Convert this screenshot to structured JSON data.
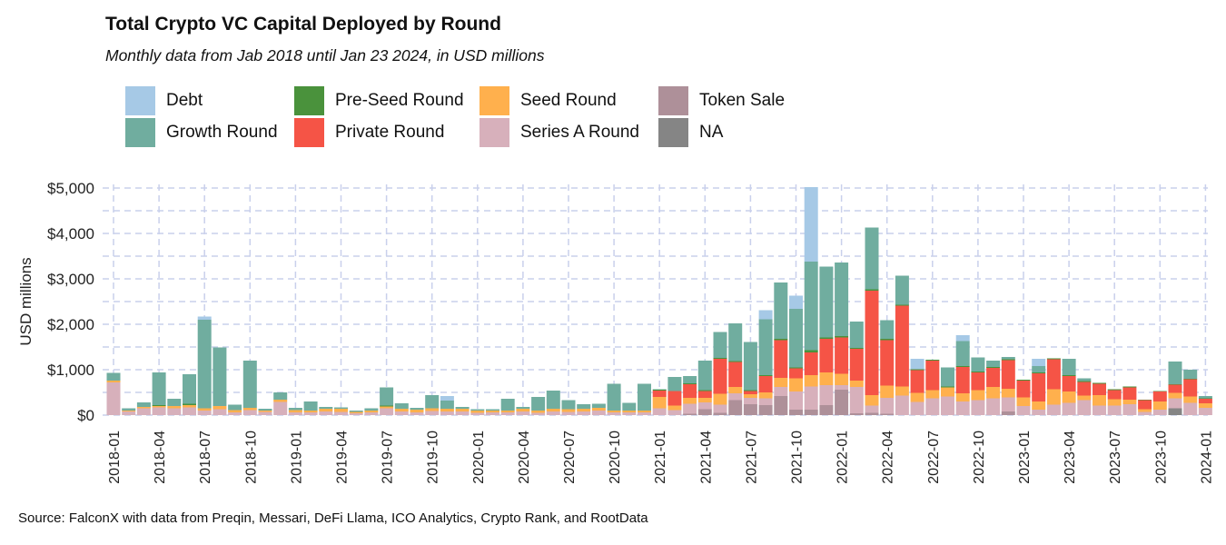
{
  "chart_data": {
    "type": "stacked-bar",
    "title": "Total Crypto VC Capital Deployed by Round",
    "subtitle": "Monthly data from Jab 2018 until Jan 23 2024, in USD millions",
    "ylabel": "USD millions",
    "xlabel": "",
    "ylim": [
      0,
      5000
    ],
    "yticks": [
      0,
      1000,
      2000,
      3000,
      4000,
      5000
    ],
    "ytick_labels": [
      "$0",
      "$1,000",
      "$2,000",
      "$3,000",
      "$4,000",
      "$5,000"
    ],
    "xtick_labels": [
      "2018-01",
      "2018-04",
      "2018-07",
      "2018-10",
      "2019-01",
      "2019-04",
      "2019-07",
      "2019-10",
      "2020-01",
      "2020-04",
      "2020-07",
      "2020-10",
      "2021-01",
      "2021-04",
      "2021-07",
      "2021-10",
      "2022-01",
      "2022-04",
      "2022-07",
      "2022-10",
      "2023-01",
      "2023-04",
      "2023-07",
      "2023-10",
      "2024-01"
    ],
    "categories": [
      "2018-01",
      "2018-02",
      "2018-03",
      "2018-04",
      "2018-05",
      "2018-06",
      "2018-07",
      "2018-08",
      "2018-09",
      "2018-10",
      "2018-11",
      "2018-12",
      "2019-01",
      "2019-02",
      "2019-03",
      "2019-04",
      "2019-05",
      "2019-06",
      "2019-07",
      "2019-08",
      "2019-09",
      "2019-10",
      "2019-11",
      "2019-12",
      "2020-01",
      "2020-02",
      "2020-03",
      "2020-04",
      "2020-05",
      "2020-06",
      "2020-07",
      "2020-08",
      "2020-09",
      "2020-10",
      "2020-11",
      "2020-12",
      "2021-01",
      "2021-02",
      "2021-03",
      "2021-04",
      "2021-05",
      "2021-06",
      "2021-07",
      "2021-08",
      "2021-09",
      "2021-10",
      "2021-11",
      "2021-12",
      "2022-01",
      "2022-02",
      "2022-03",
      "2022-04",
      "2022-05",
      "2022-06",
      "2022-07",
      "2022-08",
      "2022-09",
      "2022-10",
      "2022-11",
      "2022-12",
      "2023-01",
      "2023-02",
      "2023-03",
      "2023-04",
      "2023-05",
      "2023-06",
      "2023-07",
      "2023-08",
      "2023-09",
      "2023-10",
      "2023-11",
      "2023-12",
      "2024-01"
    ],
    "stack_order_bottom_to_top": [
      "NA",
      "Token Sale",
      "Series A Round",
      "Seed Round",
      "Private Round",
      "Pre-Seed Round",
      "Growth Round",
      "Debt"
    ],
    "legend_order": [
      "Debt",
      "Growth Round",
      "Pre-Seed Round",
      "Private Round",
      "Seed Round",
      "Series A Round",
      "Token Sale",
      "NA"
    ],
    "colors": {
      "Debt": "#a6c9e6",
      "Growth Round": "#70ad9f",
      "Pre-Seed Round": "#4a923c",
      "Private Round": "#f55446",
      "Seed Round": "#ffb04d",
      "Series A Round": "#d7b0bb",
      "Token Sale": "#ae9099",
      "NA": "#858585"
    },
    "series": [
      {
        "name": "NA",
        "values": [
          0,
          0,
          0,
          0,
          0,
          0,
          0,
          0,
          0,
          0,
          0,
          0,
          0,
          0,
          0,
          0,
          0,
          0,
          0,
          0,
          0,
          0,
          0,
          0,
          0,
          0,
          0,
          0,
          0,
          0,
          0,
          0,
          0,
          0,
          0,
          0,
          0,
          0,
          0,
          0,
          0,
          0,
          0,
          0,
          0,
          0,
          0,
          0,
          0,
          0,
          0,
          0,
          0,
          0,
          0,
          0,
          0,
          0,
          0,
          0,
          0,
          0,
          0,
          0,
          0,
          0,
          0,
          0,
          0,
          0,
          150,
          0,
          0
        ]
      },
      {
        "name": "Token Sale",
        "values": [
          0,
          0,
          0,
          0,
          0,
          0,
          0,
          0,
          0,
          0,
          0,
          0,
          0,
          0,
          0,
          0,
          0,
          0,
          0,
          0,
          0,
          0,
          0,
          0,
          0,
          0,
          0,
          0,
          0,
          0,
          0,
          0,
          0,
          0,
          0,
          0,
          0,
          0,
          30,
          130,
          50,
          330,
          240,
          220,
          420,
          120,
          120,
          220,
          560,
          40,
          50,
          30,
          0,
          0,
          0,
          0,
          0,
          0,
          0,
          80,
          0,
          0,
          0,
          0,
          0,
          0,
          0,
          0,
          0,
          0,
          0,
          0,
          0
        ]
      },
      {
        "name": "Series A Round",
        "values": [
          720,
          80,
          150,
          170,
          150,
          170,
          100,
          130,
          60,
          110,
          70,
          290,
          60,
          60,
          80,
          70,
          40,
          60,
          150,
          80,
          60,
          90,
          80,
          80,
          50,
          60,
          60,
          80,
          50,
          80,
          70,
          80,
          100,
          60,
          60,
          60,
          150,
          110,
          220,
          150,
          180,
          150,
          140,
          150,
          200,
          400,
          510,
          440,
          100,
          580,
          160,
          350,
          430,
          290,
          370,
          410,
          300,
          330,
          370,
          310,
          200,
          120,
          230,
          270,
          330,
          210,
          210,
          240,
          70,
          120,
          220,
          270,
          160
        ]
      },
      {
        "name": "Seed Round",
        "values": [
          40,
          20,
          30,
          30,
          50,
          50,
          50,
          70,
          50,
          50,
          30,
          50,
          50,
          40,
          60,
          70,
          30,
          40,
          40,
          60,
          60,
          60,
          60,
          60,
          50,
          40,
          40,
          60,
          50,
          60,
          60,
          60,
          60,
          40,
          40,
          40,
          250,
          100,
          130,
          100,
          240,
          140,
          80,
          130,
          200,
          290,
          250,
          280,
          250,
          140,
          230,
          270,
          200,
          200,
          180,
          200,
          180,
          220,
          250,
          190,
          190,
          180,
          340,
          250,
          100,
          230,
          140,
          100,
          60,
          180,
          120,
          140,
          100
        ]
      },
      {
        "name": "Private Round",
        "values": [
          0,
          0,
          0,
          0,
          0,
          0,
          0,
          0,
          0,
          0,
          0,
          0,
          0,
          0,
          0,
          0,
          0,
          0,
          0,
          0,
          0,
          0,
          0,
          0,
          0,
          0,
          0,
          0,
          0,
          0,
          0,
          0,
          0,
          0,
          0,
          0,
          140,
          320,
          300,
          150,
          770,
          550,
          70,
          360,
          830,
          220,
          500,
          740,
          800,
          700,
          2300,
          1000,
          1780,
          500,
          650,
          0,
          580,
          390,
          420,
          630,
          370,
          620,
          660,
          340,
          300,
          250,
          200,
          270,
          200,
          220,
          180,
          380,
          100
        ]
      },
      {
        "name": "Pre-Seed Round",
        "values": [
          0,
          0,
          0,
          20,
          0,
          30,
          0,
          0,
          0,
          0,
          0,
          0,
          0,
          0,
          0,
          0,
          0,
          0,
          20,
          0,
          0,
          0,
          0,
          0,
          0,
          0,
          0,
          0,
          0,
          0,
          0,
          0,
          0,
          0,
          0,
          0,
          20,
          0,
          20,
          20,
          20,
          20,
          20,
          20,
          30,
          20,
          50,
          30,
          30,
          20,
          30,
          30,
          20,
          20,
          20,
          20,
          20,
          20,
          20,
          20,
          20,
          20,
          20,
          20,
          20,
          20,
          20,
          20,
          10,
          10,
          10,
          10,
          10
        ]
      },
      {
        "name": "Growth Round",
        "values": [
          170,
          50,
          100,
          720,
          160,
          650,
          1950,
          1290,
          120,
          1040,
          40,
          160,
          50,
          200,
          40,
          30,
          30,
          50,
          400,
          120,
          40,
          290,
          180,
          40,
          30,
          30,
          260,
          40,
          300,
          400,
          200,
          100,
          90,
          590,
          170,
          590,
          10,
          310,
          160,
          650,
          570,
          830,
          1060,
          1230,
          1240,
          1290,
          1950,
          1560,
          1620,
          580,
          1360,
          410,
          640,
          0,
          0,
          420,
          550,
          310,
          140,
          50,
          0,
          140,
          0,
          360,
          60,
          0,
          0,
          0,
          0,
          0,
          500,
          200,
          50
        ]
      },
      {
        "name": "Debt",
        "values": [
          0,
          0,
          0,
          0,
          0,
          0,
          70,
          0,
          0,
          0,
          0,
          0,
          0,
          0,
          0,
          0,
          0,
          0,
          0,
          0,
          0,
          0,
          100,
          0,
          0,
          0,
          0,
          0,
          0,
          0,
          0,
          0,
          0,
          0,
          0,
          0,
          0,
          0,
          0,
          0,
          0,
          0,
          0,
          200,
          0,
          290,
          1640,
          0,
          0,
          0,
          0,
          0,
          0,
          230,
          0,
          0,
          130,
          0,
          0,
          0,
          0,
          160,
          0,
          0,
          0,
          0,
          0,
          0,
          0,
          0,
          0,
          0,
          0
        ]
      }
    ]
  },
  "source": "Source: FalconX with data from Preqin, Messari, DeFi Llama, ICO Analytics, Crypto Rank, and RootData"
}
